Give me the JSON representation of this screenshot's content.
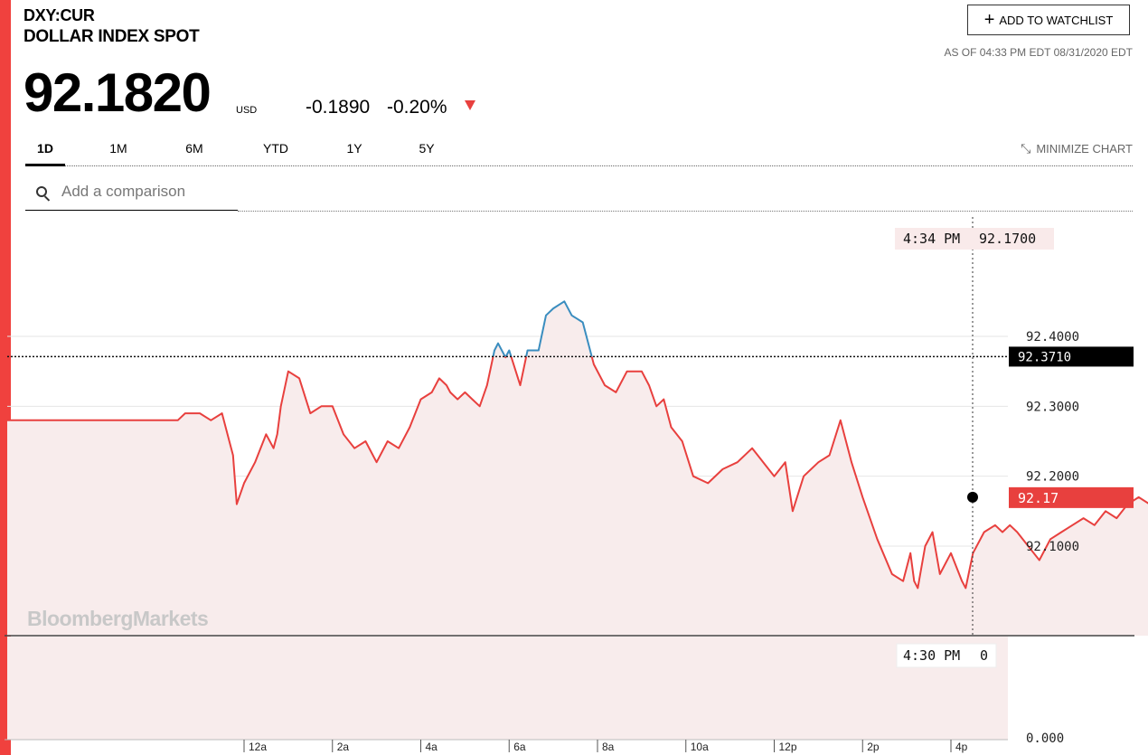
{
  "header": {
    "ticker": "DXY:CUR",
    "name": "DOLLAR INDEX SPOT",
    "price": "92.1820",
    "currency": "USD",
    "change": "-0.1890",
    "change_pct": "-0.20%",
    "watchlist_label": "ADD TO WATCHLIST",
    "as_of": "AS OF 04:33 PM EDT 08/31/2020 EDT"
  },
  "tabs": [
    "1D",
    "1M",
    "6M",
    "YTD",
    "1Y",
    "5Y"
  ],
  "active_tab": "1D",
  "minimize_label": "MINIMIZE CHART",
  "search": {
    "placeholder": "Add a comparison"
  },
  "colors": {
    "accent": "#f0413e",
    "line": "#e8403e",
    "line_above_prev": "#3a8dbf",
    "fill": "#f8ecec",
    "label_bg": "#f9eaea"
  },
  "chart_data": {
    "type": "line",
    "title": "",
    "xlabel": "",
    "ylabel": "",
    "x_ticks": [
      "12a",
      "2a",
      "4a",
      "6a",
      "8a",
      "10a",
      "12p",
      "2p",
      "4p"
    ],
    "y_ticks": [
      "92.1000",
      "92.2000",
      "92.3000",
      "92.4000"
    ],
    "ylim": [
      92.03,
      92.47
    ],
    "previous_close": "92.3710",
    "last_value": "92.17",
    "crosshair_time": "4:34 PM",
    "crosshair_value": "92.1700",
    "volume": {
      "ticks": [
        "0.000"
      ],
      "time": "4:30 PM",
      "value": "0"
    },
    "watermark": "BloombergMarkets",
    "series": [
      {
        "x": [
          "22:30",
          "22:40",
          "23:00",
          "23:15",
          "23:30",
          "23:40",
          "23:45",
          "23:50",
          "24:00",
          "24:15",
          "24:30",
          "24:40",
          "24:45",
          "24:50",
          "25:00",
          "25:15",
          "25:30",
          "25:45",
          "26:00",
          "26:15",
          "26:30",
          "26:45",
          "27:00",
          "27:15",
          "27:30",
          "27:45",
          "28:00",
          "28:15",
          "28:25",
          "28:35",
          "28:40",
          "28:50",
          "29:00",
          "29:10",
          "29:20",
          "29:30",
          "29:40",
          "29:45",
          "29:55",
          "30:00",
          "30:15",
          "30:25",
          "30:40",
          "30:50",
          "31:00",
          "31:15",
          "31:25",
          "31:40",
          "31:55",
          "32:10",
          "32:25",
          "32:40",
          "33:00",
          "33:10",
          "33:20",
          "33:30",
          "33:40",
          "33:55",
          "34:10",
          "34:30",
          "34:50",
          "35:10",
          "35:30",
          "35:45",
          "36:00",
          "36:15",
          "36:25",
          "36:40",
          "37:00",
          "37:15",
          "37:30",
          "37:45",
          "38:00",
          "38:20",
          "38:40",
          "38:55",
          "39:05",
          "39:10",
          "39:15",
          "39:25",
          "39:35",
          "39:45",
          "40:00",
          "40:15",
          "40:20",
          "40:30",
          "40:45",
          "41:00",
          "41:10",
          "41:20",
          "41:30",
          "41:45",
          "42:00",
          "42:15",
          "42:30",
          "42:45",
          "43:00",
          "43:15",
          "43:30",
          "43:45",
          "44:00",
          "44:15",
          "44:30",
          "44:45",
          "45:00",
          "45:15",
          "45:30",
          "45:45",
          "46:00",
          "46:15",
          "46:30",
          "46:45",
          "47:00",
          "47:15",
          "47:30",
          "47:45",
          "48:00",
          "48:15",
          "48:30",
          "48:45",
          "49:00",
          "49:15",
          "49:30",
          "49:45",
          "50:00",
          "50:15",
          "50:30",
          "50:35"
        ],
        "values": [
          92.28,
          92.29,
          92.29,
          92.28,
          92.29,
          92.25,
          92.23,
          92.16,
          92.19,
          92.22,
          92.26,
          92.24,
          92.26,
          92.3,
          92.35,
          92.34,
          92.29,
          92.3,
          92.3,
          92.26,
          92.24,
          92.25,
          92.22,
          92.25,
          92.24,
          92.27,
          92.31,
          92.32,
          92.34,
          92.33,
          92.32,
          92.31,
          92.32,
          92.31,
          92.3,
          92.33,
          92.38,
          92.39,
          92.37,
          92.38,
          92.33,
          92.38,
          92.38,
          92.43,
          92.44,
          92.45,
          92.43,
          92.42,
          92.36,
          92.33,
          92.32,
          92.35,
          92.35,
          92.33,
          92.3,
          92.31,
          92.27,
          92.25,
          92.2,
          92.19,
          92.21,
          92.22,
          92.24,
          92.22,
          92.2,
          92.22,
          92.15,
          92.2,
          92.22,
          92.23,
          92.28,
          92.22,
          92.17,
          92.11,
          92.06,
          92.05,
          92.09,
          92.05,
          92.04,
          92.1,
          92.12,
          92.06,
          92.09,
          92.05,
          92.04,
          92.09,
          92.12,
          92.13,
          92.12,
          92.13,
          92.12,
          92.1,
          92.08,
          92.11,
          92.12,
          92.13,
          92.14,
          92.13,
          92.15,
          92.14,
          92.16,
          92.17,
          92.16,
          92.15,
          92.19,
          92.19,
          92.19,
          92.18,
          92.2,
          92.21,
          92.2,
          92.19,
          92.2,
          92.19,
          92.21,
          92.21,
          92.2,
          92.19,
          92.2,
          92.2,
          92.21,
          92.19,
          92.2,
          92.19,
          92.2,
          92.18,
          92.17,
          92.17
        ]
      }
    ]
  }
}
